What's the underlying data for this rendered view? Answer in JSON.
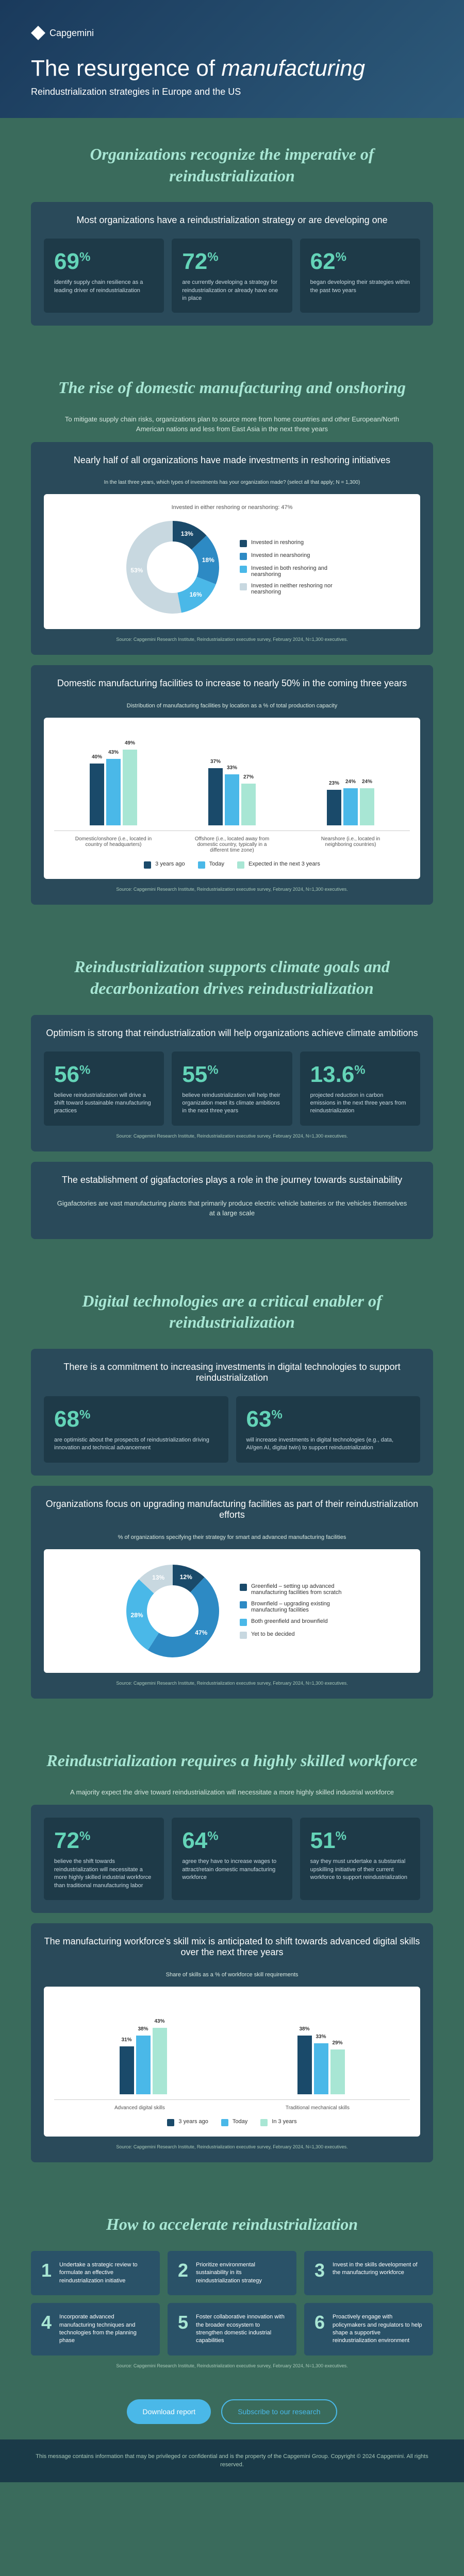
{
  "brand": "Capgemini",
  "header": {
    "title_pre": "The resurgence of ",
    "title_em": "manufacturing",
    "subtitle": "Reindustrialization strategies in Europe and the US"
  },
  "s1": {
    "title": "Organizations recognize the imperative of reindustrialization",
    "card_title": "Most organizations have a reindustrialization strategy or are developing one",
    "stats": [
      {
        "v": "69",
        "d": "identify supply chain resilience as a leading driver of reindustrialization"
      },
      {
        "v": "72",
        "d": "are currently developing a strategy for reindustrialization or already have one in place"
      },
      {
        "v": "62",
        "d": "began developing their strategies within the past two years"
      }
    ]
  },
  "s2": {
    "title": "The rise of domestic manufacturing and onshoring",
    "intro": "To mitigate supply chain risks, organizations plan to source more from home countries and other European/North American nations and less from East Asia in the next three years",
    "card1_title": "Nearly half of all organizations have made investments in reshoring initiatives",
    "chart1_subtitle": "In the last three years, which types of investments has your organization made? (select all that apply; N = 1,300)",
    "donut1": {
      "slices": [
        {
          "label": "Invested in reshoring",
          "value": 13,
          "color": "#1a4a6a"
        },
        {
          "label": "Invested in nearshoring",
          "value": 18,
          "color": "#2d8ac4"
        },
        {
          "label": "Invested in both reshoring and nearshoring",
          "value": 16,
          "color": "#4ab8e8"
        },
        {
          "label": "Invested in neither reshoring nor nearshoring",
          "value": 53,
          "color": "#c8d8e0"
        }
      ],
      "top_label": "Invested in either reshoring or nearshoring: 47%"
    },
    "card2_title": "Domestic manufacturing facilities to increase to nearly 50% in the coming three years",
    "chart2_subtitle": "Distribution of manufacturing facilities by location as a % of total production capacity",
    "bars": {
      "categories": [
        "Domestic/onshore (i.e., located in country of headquarters)",
        "Offshore (i.e., located away from domestic country, typically in a different time zone)",
        "Nearshore (i.e., located in neighboring countries)"
      ],
      "series": [
        {
          "name": "3 years ago",
          "color": "#1a4a6a",
          "values": [
            40,
            37,
            23
          ]
        },
        {
          "name": "Today",
          "color": "#4ab8e8",
          "values": [
            43,
            33,
            24
          ]
        },
        {
          "name": "Expected in the next 3 years",
          "color": "#a8e6d4",
          "values": [
            49,
            27,
            24
          ]
        }
      ]
    },
    "source": "Source: Capgemini Research Institute, Reindustrialization executive survey, February 2024, N=1,300 executives."
  },
  "s3": {
    "title": "Reindustrialization supports climate goals and decarbonization drives reindustrialization",
    "card1_title": "Optimism is strong that reindustrialization will help organizations achieve climate ambitions",
    "stats": [
      {
        "v": "56",
        "d": "believe reindustrialization will drive a shift toward sustainable manufacturing practices"
      },
      {
        "v": "55",
        "d": "believe reindustrialization will help their organization meet its climate ambitions in the next three years"
      },
      {
        "v": "13.6",
        "d": "projected reduction in carbon emissions in the next three years from reindustrialization"
      }
    ],
    "card2_title": "The establishment of gigafactories plays a role in the journey towards sustainability",
    "card2_body": "Gigafactories are vast manufacturing plants that primarily produce electric vehicle batteries or the vehicles themselves at a large scale",
    "source": "Source: Capgemini Research Institute, Reindustrialization executive survey, February 2024, N=1,300 executives."
  },
  "s4": {
    "title": "Digital technologies are a critical enabler of reindustrialization",
    "card1_title": "There is a commitment to increasing investments in digital technologies to support reindustrialization",
    "stats": [
      {
        "v": "68",
        "d": "are optimistic about the prospects of reindustrialization driving innovation and technical advancement"
      },
      {
        "v": "63",
        "d": "will increase investments in digital technologies (e.g., data, AI/gen AI, digital twin) to support reindustrialization"
      }
    ],
    "card2_title": "Organizations focus on upgrading manufacturing facilities as part of their reindustrialization efforts",
    "chart_subtitle": "% of organizations specifying their strategy for smart and advanced manufacturing facilities",
    "donut2": {
      "slices": [
        {
          "label": "Greenfield – setting up advanced manufacturing facilities from scratch",
          "value": 12,
          "color": "#1a4a6a"
        },
        {
          "label": "Brownfield – upgrading existing manufacturing facilities",
          "value": 47,
          "color": "#2d8ac4"
        },
        {
          "label": "Both greenfield and brownfield",
          "value": 28,
          "color": "#4ab8e8"
        },
        {
          "label": "Yet to be decided",
          "value": 13,
          "color": "#c8d8e0"
        }
      ]
    },
    "source": "Source: Capgemini Research Institute, Reindustrialization executive survey, February 2024, N=1,300 executives."
  },
  "s5": {
    "title": "Reindustrialization requires a highly skilled workforce",
    "intro": "A majority expect the drive toward reindustrialization will necessitate a more highly skilled industrial workforce",
    "stats": [
      {
        "v": "72",
        "d": "believe the shift towards reindustrialization will necessitate a more highly skilled industrial workforce than traditional manufacturing labor"
      },
      {
        "v": "64",
        "d": "agree they have to increase wages to attract/retain domestic manufacturing workforce"
      },
      {
        "v": "51",
        "d": "say they must undertake a substantial upskilling initiative of their current workforce to support reindustrialization"
      }
    ],
    "card2_title": "The manufacturing workforce's skill mix is anticipated to shift towards advanced digital skills over the next three years",
    "chart_subtitle": "Share of skills as a % of workforce skill requirements",
    "skillbars": {
      "categories": [
        "Advanced digital skills",
        "Traditional mechanical skills"
      ],
      "series": [
        {
          "name": "3 years ago",
          "color": "#1a4a6a",
          "values": [
            31,
            38
          ]
        },
        {
          "name": "Today",
          "color": "#4ab8e8",
          "values": [
            38,
            33
          ]
        },
        {
          "name": "In 3 years",
          "color": "#a8e6d4",
          "values": [
            43,
            29
          ]
        }
      ]
    },
    "icons": [
      "💻",
      "🔧"
    ],
    "source": "Source: Capgemini Research Institute, Reindustrialization executive survey, February 2024, N=1,300 executives."
  },
  "s6": {
    "title": "How to accelerate reindustrialization",
    "items": [
      "Undertake a strategic review to formulate an effective reindustrialization initiative",
      "Prioritize environmental sustainability in its reindustrialization strategy",
      "Invest in the skills development of the manufacturing workforce",
      "Incorporate advanced manufacturing techniques and technologies from the planning phase",
      "Foster collaborative innovation with the broader ecosystem to strengthen domestic industrial capabilities",
      "Proactively engage with policymakers and regulators to help shape a supportive reindustrialization environment"
    ],
    "source": "Source: Capgemini Research Institute, Reindustrialization executive survey, February 2024, N=1,300 executives."
  },
  "cta": {
    "primary": "Download report",
    "secondary": "Subscribe to our research"
  },
  "footer": "This message contains information that may be privileged or confidential and is the property of the Capgemini Group. Copyright © 2024 Capgemini. All rights reserved."
}
